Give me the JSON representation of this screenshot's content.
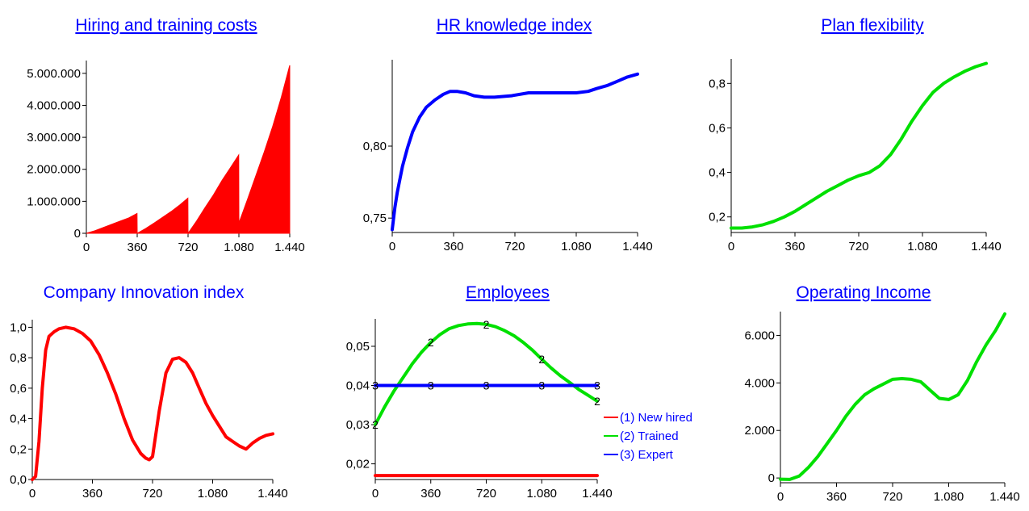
{
  "chart_data": [
    {
      "id": "hiring",
      "type": "area",
      "title": "Hiring and training costs",
      "title_underline": true,
      "xlim": [
        0,
        1440
      ],
      "ylim": [
        0,
        5400000
      ],
      "x_ticks": [
        0,
        360,
        720,
        1080,
        1440
      ],
      "x_tick_labels": [
        "0",
        "360",
        "720",
        "1.080",
        "1.440"
      ],
      "y_ticks": [
        0,
        1000000,
        2000000,
        3000000,
        4000000,
        5000000
      ],
      "y_tick_labels": [
        "0",
        "1.000.000",
        "2.000.000",
        "3.000.000",
        "4.000.000",
        "5.000.000"
      ],
      "series": [
        {
          "color": "#ff0000",
          "x": [
            0,
            60,
            120,
            180,
            240,
            300,
            359,
            360,
            420,
            480,
            540,
            600,
            660,
            719,
            720,
            780,
            840,
            900,
            960,
            1020,
            1079,
            1080,
            1140,
            1200,
            1260,
            1320,
            1380,
            1440
          ],
          "y": [
            0,
            80000,
            180000,
            280000,
            380000,
            480000,
            620000,
            0,
            150000,
            320000,
            500000,
            680000,
            880000,
            1100000,
            0,
            380000,
            800000,
            1200000,
            1650000,
            2050000,
            2450000,
            320000,
            1050000,
            1800000,
            2550000,
            3350000,
            4250000,
            5250000
          ]
        }
      ]
    },
    {
      "id": "hr",
      "type": "line",
      "title": "HR knowledge index",
      "title_underline": true,
      "xlim": [
        0,
        1440
      ],
      "ylim": [
        0.74,
        0.86
      ],
      "x_ticks": [
        0,
        360,
        720,
        1080,
        1440
      ],
      "x_tick_labels": [
        "0",
        "360",
        "720",
        "1.080",
        "1.440"
      ],
      "y_ticks": [
        0.75,
        0.8
      ],
      "y_tick_labels": [
        "0,75",
        "0,80"
      ],
      "series": [
        {
          "color": "#0000ff",
          "x": [
            0,
            15,
            30,
            60,
            90,
            120,
            160,
            200,
            250,
            300,
            340,
            380,
            430,
            480,
            540,
            600,
            700,
            800,
            900,
            1000,
            1080,
            1150,
            1200,
            1260,
            1320,
            1380,
            1440
          ],
          "y": [
            0.742,
            0.757,
            0.768,
            0.786,
            0.799,
            0.81,
            0.82,
            0.827,
            0.832,
            0.836,
            0.838,
            0.838,
            0.837,
            0.835,
            0.834,
            0.834,
            0.835,
            0.837,
            0.837,
            0.837,
            0.837,
            0.838,
            0.84,
            0.842,
            0.845,
            0.848,
            0.85
          ]
        }
      ]
    },
    {
      "id": "plan",
      "type": "line",
      "title": "Plan flexibility",
      "title_underline": true,
      "xlim": [
        0,
        1440
      ],
      "ylim": [
        0.13,
        0.91
      ],
      "x_ticks": [
        0,
        360,
        720,
        1080,
        1440
      ],
      "x_tick_labels": [
        "0",
        "360",
        "720",
        "1.080",
        "1.440"
      ],
      "y_ticks": [
        0.2,
        0.4,
        0.6,
        0.8
      ],
      "y_tick_labels": [
        "0,2",
        "0,4",
        "0,6",
        "0,8"
      ],
      "series": [
        {
          "color": "#00e000",
          "x": [
            0,
            60,
            120,
            180,
            240,
            300,
            360,
            420,
            480,
            540,
            600,
            660,
            720,
            780,
            840,
            900,
            960,
            1020,
            1080,
            1140,
            1200,
            1260,
            1320,
            1380,
            1440
          ],
          "y": [
            0.15,
            0.15,
            0.155,
            0.165,
            0.18,
            0.2,
            0.225,
            0.255,
            0.285,
            0.315,
            0.34,
            0.365,
            0.385,
            0.4,
            0.43,
            0.48,
            0.55,
            0.63,
            0.7,
            0.76,
            0.8,
            0.83,
            0.855,
            0.875,
            0.89
          ]
        }
      ]
    },
    {
      "id": "innovation",
      "type": "line",
      "title": "Company Innovation index",
      "title_underline": false,
      "xlim": [
        0,
        1440
      ],
      "ylim": [
        0,
        1.05
      ],
      "x_ticks": [
        0,
        360,
        720,
        1080,
        1440
      ],
      "x_tick_labels": [
        "0",
        "360",
        "720",
        "1.080",
        "1.440"
      ],
      "y_ticks": [
        0,
        0.2,
        0.4,
        0.6,
        0.8,
        1.0
      ],
      "y_tick_labels": [
        "0,0",
        "0,2",
        "0,4",
        "0,6",
        "0,8",
        "1,0"
      ],
      "series": [
        {
          "color": "#ff0000",
          "x": [
            0,
            20,
            40,
            60,
            80,
            100,
            130,
            160,
            200,
            250,
            300,
            350,
            400,
            450,
            500,
            550,
            600,
            650,
            680,
            700,
            720,
            760,
            800,
            840,
            880,
            920,
            960,
            1000,
            1040,
            1080,
            1120,
            1160,
            1200,
            1240,
            1280,
            1320,
            1360,
            1400,
            1440
          ],
          "y": [
            0.0,
            0.02,
            0.25,
            0.6,
            0.85,
            0.94,
            0.97,
            0.99,
            1.0,
            0.99,
            0.96,
            0.91,
            0.82,
            0.7,
            0.56,
            0.4,
            0.26,
            0.17,
            0.14,
            0.13,
            0.15,
            0.45,
            0.7,
            0.79,
            0.8,
            0.77,
            0.7,
            0.6,
            0.5,
            0.42,
            0.35,
            0.28,
            0.25,
            0.22,
            0.2,
            0.24,
            0.27,
            0.29,
            0.3
          ]
        }
      ]
    },
    {
      "id": "employees",
      "type": "line",
      "title": "Employees",
      "title_underline": true,
      "xlim": [
        0,
        1440
      ],
      "ylim": [
        0.016,
        0.057
      ],
      "x_ticks": [
        0,
        360,
        720,
        1080,
        1440
      ],
      "x_tick_labels": [
        "0",
        "360",
        "720",
        "1.080",
        "1.440"
      ],
      "y_ticks": [
        0.02,
        0.03,
        0.04,
        0.05
      ],
      "y_tick_labels": [
        "0,02",
        "0,03",
        "0,04",
        "0,05"
      ],
      "legend": [
        "(1) New hired",
        "(2) Trained",
        "(3) Expert"
      ],
      "series": [
        {
          "name": "(1) New hired",
          "marker": "1",
          "color": "#ff0000",
          "x": [
            0,
            1440
          ],
          "y": [
            0.017,
            0.017
          ]
        },
        {
          "name": "(2) Trained",
          "marker": "2",
          "color": "#00e000",
          "x": [
            0,
            60,
            120,
            180,
            240,
            300,
            360,
            420,
            480,
            540,
            600,
            660,
            720,
            780,
            840,
            900,
            960,
            1020,
            1080,
            1140,
            1200,
            1260,
            1320,
            1380,
            1440
          ],
          "y": [
            0.03,
            0.0345,
            0.0385,
            0.042,
            0.0455,
            0.0485,
            0.051,
            0.053,
            0.0545,
            0.0553,
            0.0557,
            0.0558,
            0.0556,
            0.055,
            0.054,
            0.0527,
            0.051,
            0.049,
            0.0467,
            0.0445,
            0.0425,
            0.0408,
            0.039,
            0.0375,
            0.036
          ]
        },
        {
          "name": "(3) Expert",
          "marker": "3",
          "color": "#0000ff",
          "x": [
            0,
            1440
          ],
          "y": [
            0.04,
            0.04
          ]
        }
      ]
    },
    {
      "id": "income",
      "type": "line",
      "title": "Operating Income",
      "title_underline": true,
      "xlim": [
        0,
        1440
      ],
      "ylim": [
        -200,
        7000
      ],
      "x_ticks": [
        0,
        360,
        720,
        1080,
        1440
      ],
      "x_tick_labels": [
        "0",
        "360",
        "720",
        "1.080",
        "1.440"
      ],
      "y_ticks": [
        0,
        2000,
        4000,
        6000
      ],
      "y_tick_labels": [
        "0",
        "2.000",
        "4.000",
        "6.000"
      ],
      "series": [
        {
          "color": "#00e000",
          "x": [
            0,
            60,
            120,
            180,
            240,
            300,
            360,
            420,
            480,
            540,
            600,
            660,
            720,
            780,
            840,
            900,
            960,
            1020,
            1080,
            1140,
            1200,
            1260,
            1320,
            1380,
            1440
          ],
          "y": [
            -50,
            -60,
            80,
            450,
            900,
            1450,
            2000,
            2600,
            3100,
            3500,
            3750,
            3950,
            4150,
            4180,
            4150,
            4050,
            3700,
            3350,
            3300,
            3500,
            4100,
            4900,
            5600,
            6200,
            6900
          ]
        }
      ]
    }
  ]
}
